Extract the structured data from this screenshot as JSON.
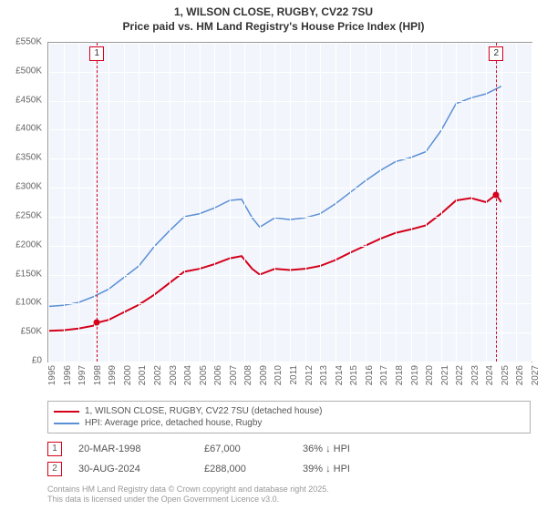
{
  "title": {
    "line1": "1, WILSON CLOSE, RUGBY, CV22 7SU",
    "line2": "Price paid vs. HM Land Registry's House Price Index (HPI)"
  },
  "chart": {
    "type": "line",
    "background_color": "#f2f6fc",
    "grid_color": "#ffffff",
    "border_color": "#999999",
    "xlim": [
      1995,
      2027
    ],
    "ylim": [
      0,
      550000
    ],
    "x_ticks": [
      1995,
      1996,
      1997,
      1998,
      1999,
      2000,
      2001,
      2002,
      2003,
      2004,
      2005,
      2006,
      2007,
      2008,
      2009,
      2010,
      2011,
      2012,
      2013,
      2014,
      2015,
      2016,
      2017,
      2018,
      2019,
      2020,
      2021,
      2022,
      2023,
      2024,
      2025,
      2026,
      2027
    ],
    "y_ticks": [
      {
        "v": 0,
        "label": "£0"
      },
      {
        "v": 50000,
        "label": "£50K"
      },
      {
        "v": 100000,
        "label": "£100K"
      },
      {
        "v": 150000,
        "label": "£150K"
      },
      {
        "v": 200000,
        "label": "£200K"
      },
      {
        "v": 250000,
        "label": "£250K"
      },
      {
        "v": 300000,
        "label": "£300K"
      },
      {
        "v": 350000,
        "label": "£350K"
      },
      {
        "v": 400000,
        "label": "£400K"
      },
      {
        "v": 450000,
        "label": "£450K"
      },
      {
        "v": 500000,
        "label": "£500K"
      },
      {
        "v": 550000,
        "label": "£550K"
      }
    ],
    "series": [
      {
        "name": "price_paid",
        "label": "1, WILSON CLOSE, RUGBY, CV22 7SU (detached house)",
        "color": "#d4001a",
        "line_width": 2,
        "data": [
          [
            1995,
            53000
          ],
          [
            1996,
            54000
          ],
          [
            1997,
            57000
          ],
          [
            1998,
            62000
          ],
          [
            1998.22,
            67000
          ],
          [
            1999,
            72000
          ],
          [
            2000,
            85000
          ],
          [
            2001,
            98000
          ],
          [
            2002,
            115000
          ],
          [
            2003,
            135000
          ],
          [
            2004,
            155000
          ],
          [
            2005,
            160000
          ],
          [
            2006,
            168000
          ],
          [
            2007,
            178000
          ],
          [
            2007.8,
            182000
          ],
          [
            2008.5,
            160000
          ],
          [
            2009,
            150000
          ],
          [
            2010,
            160000
          ],
          [
            2011,
            158000
          ],
          [
            2012,
            160000
          ],
          [
            2013,
            165000
          ],
          [
            2014,
            175000
          ],
          [
            2015,
            188000
          ],
          [
            2016,
            200000
          ],
          [
            2017,
            212000
          ],
          [
            2018,
            222000
          ],
          [
            2019,
            228000
          ],
          [
            2020,
            235000
          ],
          [
            2021,
            255000
          ],
          [
            2022,
            278000
          ],
          [
            2023,
            282000
          ],
          [
            2024,
            275000
          ],
          [
            2024.66,
            288000
          ],
          [
            2025,
            275000
          ]
        ]
      },
      {
        "name": "hpi",
        "label": "HPI: Average price, detached house, Rugby",
        "color": "#5b8fd6",
        "line_width": 1.5,
        "data": [
          [
            1995,
            95000
          ],
          [
            1996,
            97000
          ],
          [
            1997,
            102000
          ],
          [
            1998,
            112000
          ],
          [
            1999,
            125000
          ],
          [
            2000,
            145000
          ],
          [
            2001,
            165000
          ],
          [
            2002,
            198000
          ],
          [
            2003,
            225000
          ],
          [
            2004,
            250000
          ],
          [
            2005,
            255000
          ],
          [
            2006,
            265000
          ],
          [
            2007,
            278000
          ],
          [
            2007.8,
            280000
          ],
          [
            2008.5,
            248000
          ],
          [
            2009,
            232000
          ],
          [
            2010,
            248000
          ],
          [
            2011,
            245000
          ],
          [
            2012,
            248000
          ],
          [
            2013,
            255000
          ],
          [
            2014,
            272000
          ],
          [
            2015,
            292000
          ],
          [
            2016,
            312000
          ],
          [
            2017,
            330000
          ],
          [
            2018,
            345000
          ],
          [
            2019,
            352000
          ],
          [
            2020,
            362000
          ],
          [
            2021,
            398000
          ],
          [
            2022,
            445000
          ],
          [
            2023,
            455000
          ],
          [
            2024,
            462000
          ],
          [
            2025,
            475000
          ]
        ]
      }
    ],
    "markers": [
      {
        "id": "1",
        "year": 1998.22,
        "color": "#d4001a"
      },
      {
        "id": "2",
        "year": 2024.66,
        "color": "#d4001a"
      }
    ],
    "sale_points": [
      {
        "year": 1998.22,
        "value": 67000,
        "color": "#d4001a"
      },
      {
        "year": 2024.66,
        "value": 288000,
        "color": "#d4001a"
      }
    ]
  },
  "legend": {
    "items": [
      {
        "color": "#d4001a",
        "label": "1, WILSON CLOSE, RUGBY, CV22 7SU (detached house)"
      },
      {
        "color": "#5b8fd6",
        "label": "HPI: Average price, detached house, Rugby"
      }
    ]
  },
  "sales": [
    {
      "id": "1",
      "date": "20-MAR-1998",
      "price": "£67,000",
      "pct": "36% ↓ HPI",
      "color": "#d4001a"
    },
    {
      "id": "2",
      "date": "30-AUG-2024",
      "price": "£288,000",
      "pct": "39% ↓ HPI",
      "color": "#d4001a"
    }
  ],
  "footer": {
    "line1": "Contains HM Land Registry data © Crown copyright and database right 2025.",
    "line2": "This data is licensed under the Open Government Licence v3.0."
  }
}
